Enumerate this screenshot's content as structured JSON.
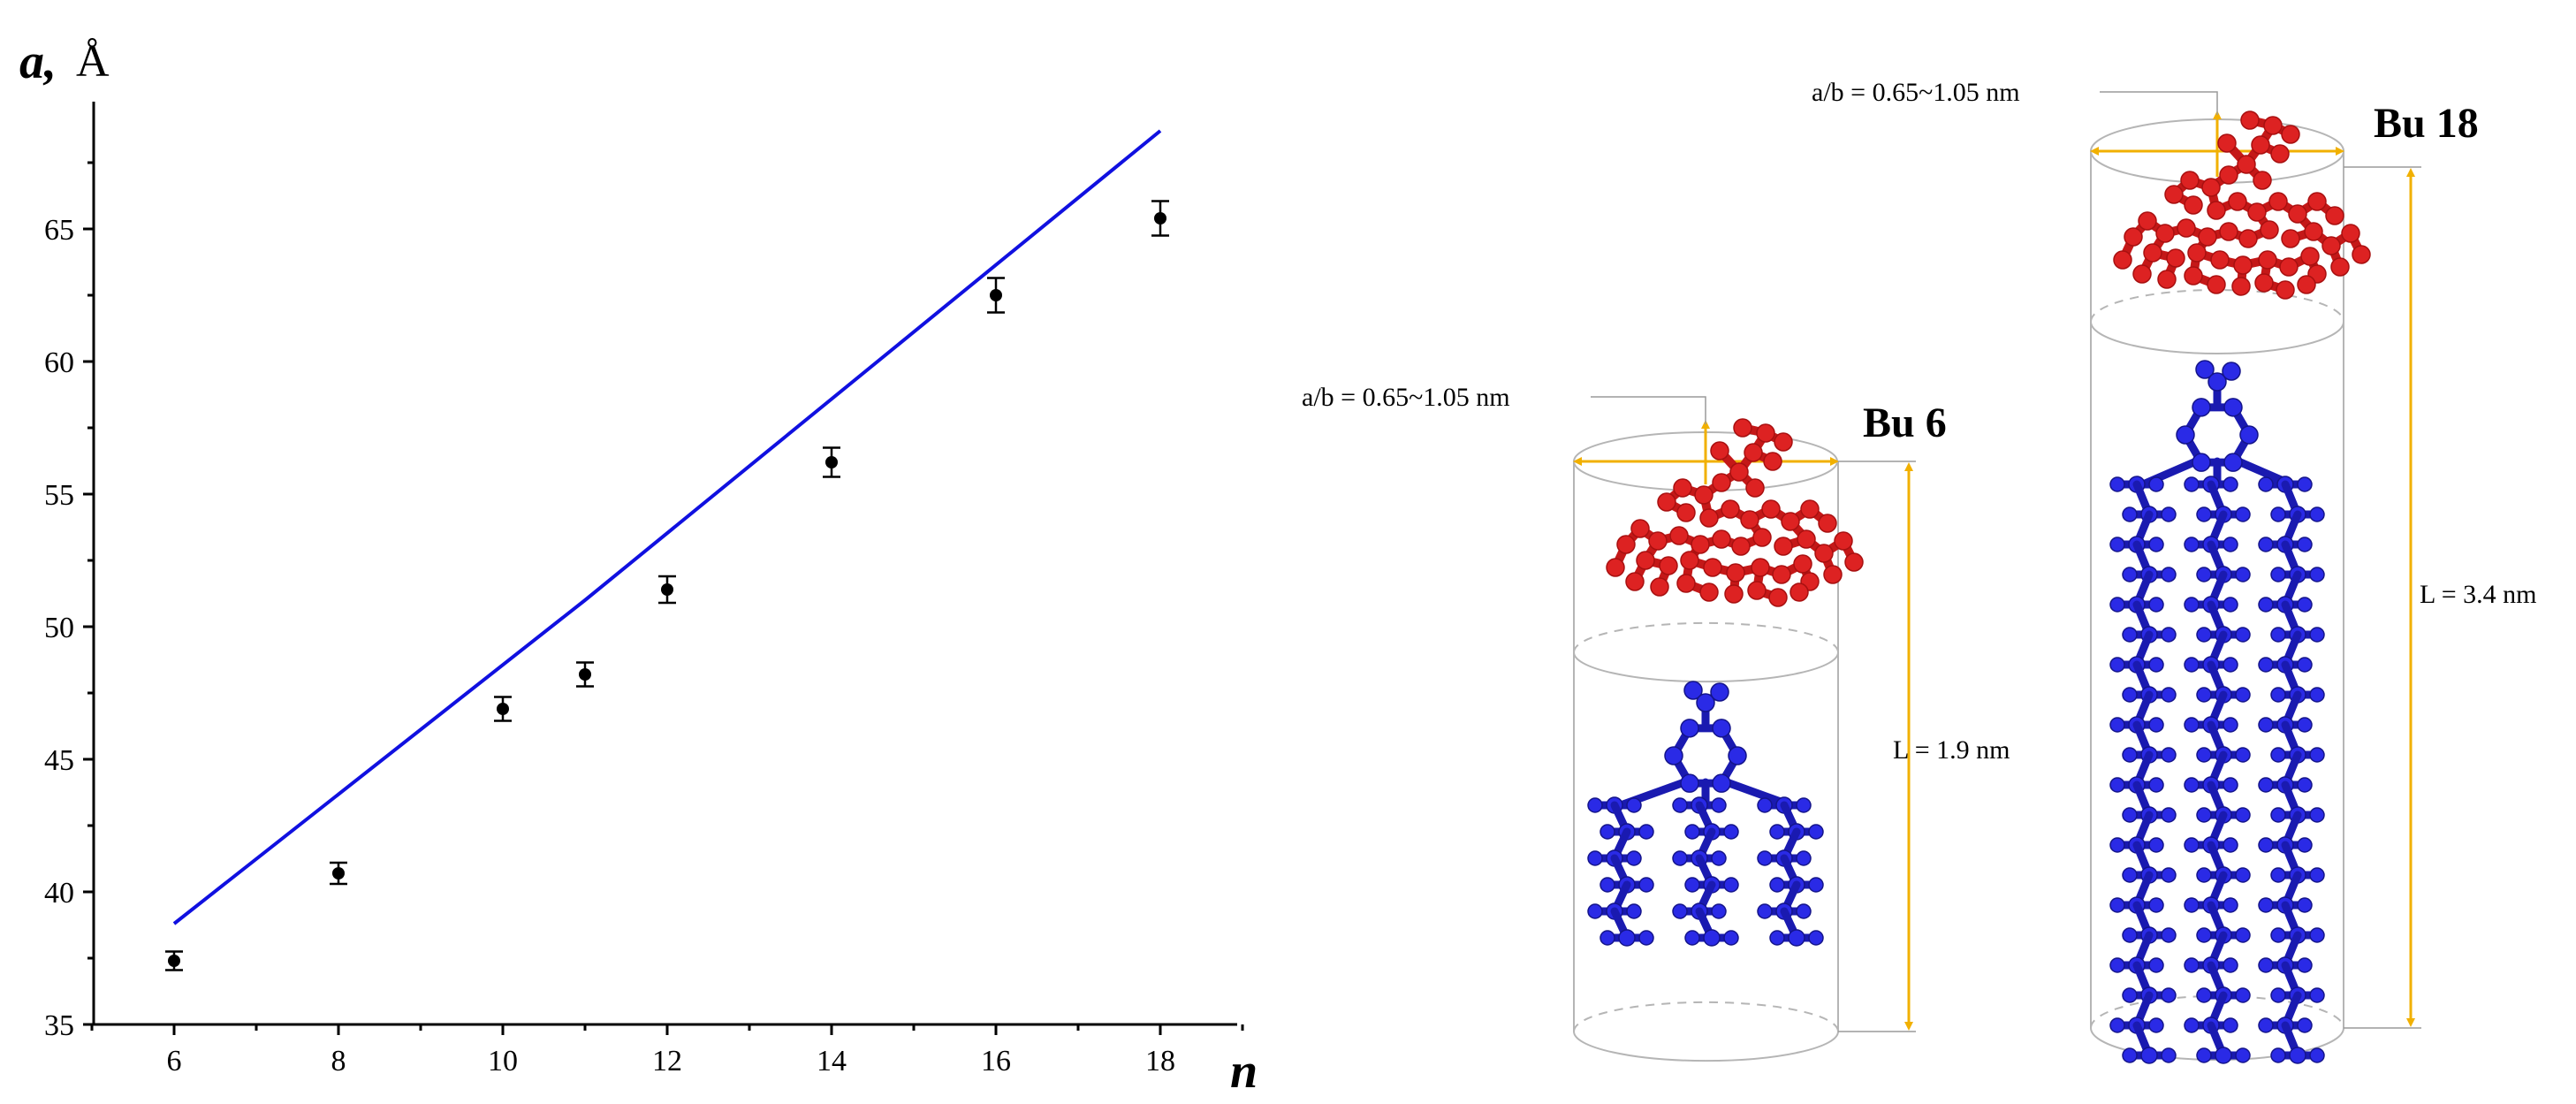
{
  "chart_data": {
    "type": "scatter",
    "xlabel": "n",
    "ylabel": "a,",
    "ylabel_unit": "Å",
    "xlim": [
      5,
      19
    ],
    "ylim": [
      35,
      69
    ],
    "xticks": [
      6,
      8,
      10,
      12,
      14,
      16,
      18
    ],
    "yticks": [
      35,
      40,
      45,
      50,
      55,
      60,
      65
    ],
    "grid": false,
    "series": [
      {
        "kind": "points_with_error_bars",
        "color": "#000000",
        "x": [
          6,
          8,
          10,
          11,
          12,
          14,
          16,
          18
        ],
        "y": [
          37.4,
          40.7,
          46.9,
          48.2,
          51.4,
          56.2,
          62.5,
          65.4
        ],
        "error": [
          0.35,
          0.4,
          0.45,
          0.45,
          0.5,
          0.55,
          0.65,
          0.65
        ]
      },
      {
        "kind": "line",
        "color": "#1010e0",
        "x": [
          6,
          11,
          18
        ],
        "y": [
          38.8,
          51.0,
          68.7
        ]
      }
    ]
  },
  "diagram": {
    "small": {
      "title": "Bu 6",
      "diameter_label": "a/b = 0.65~1.05 nm",
      "length_label": "L = 1.9 nm",
      "chain_length": 6
    },
    "large": {
      "title": "Bu 18",
      "diameter_label": "a/b = 0.65~1.05 nm",
      "length_label": "L = 3.4 nm",
      "chain_length": 18
    },
    "colors": {
      "head_group": "#dd2222",
      "tail_group": "#2a2ae6",
      "dimension_arrows": "#f1b000",
      "cylinder_outline": "#b5b5b5"
    }
  }
}
